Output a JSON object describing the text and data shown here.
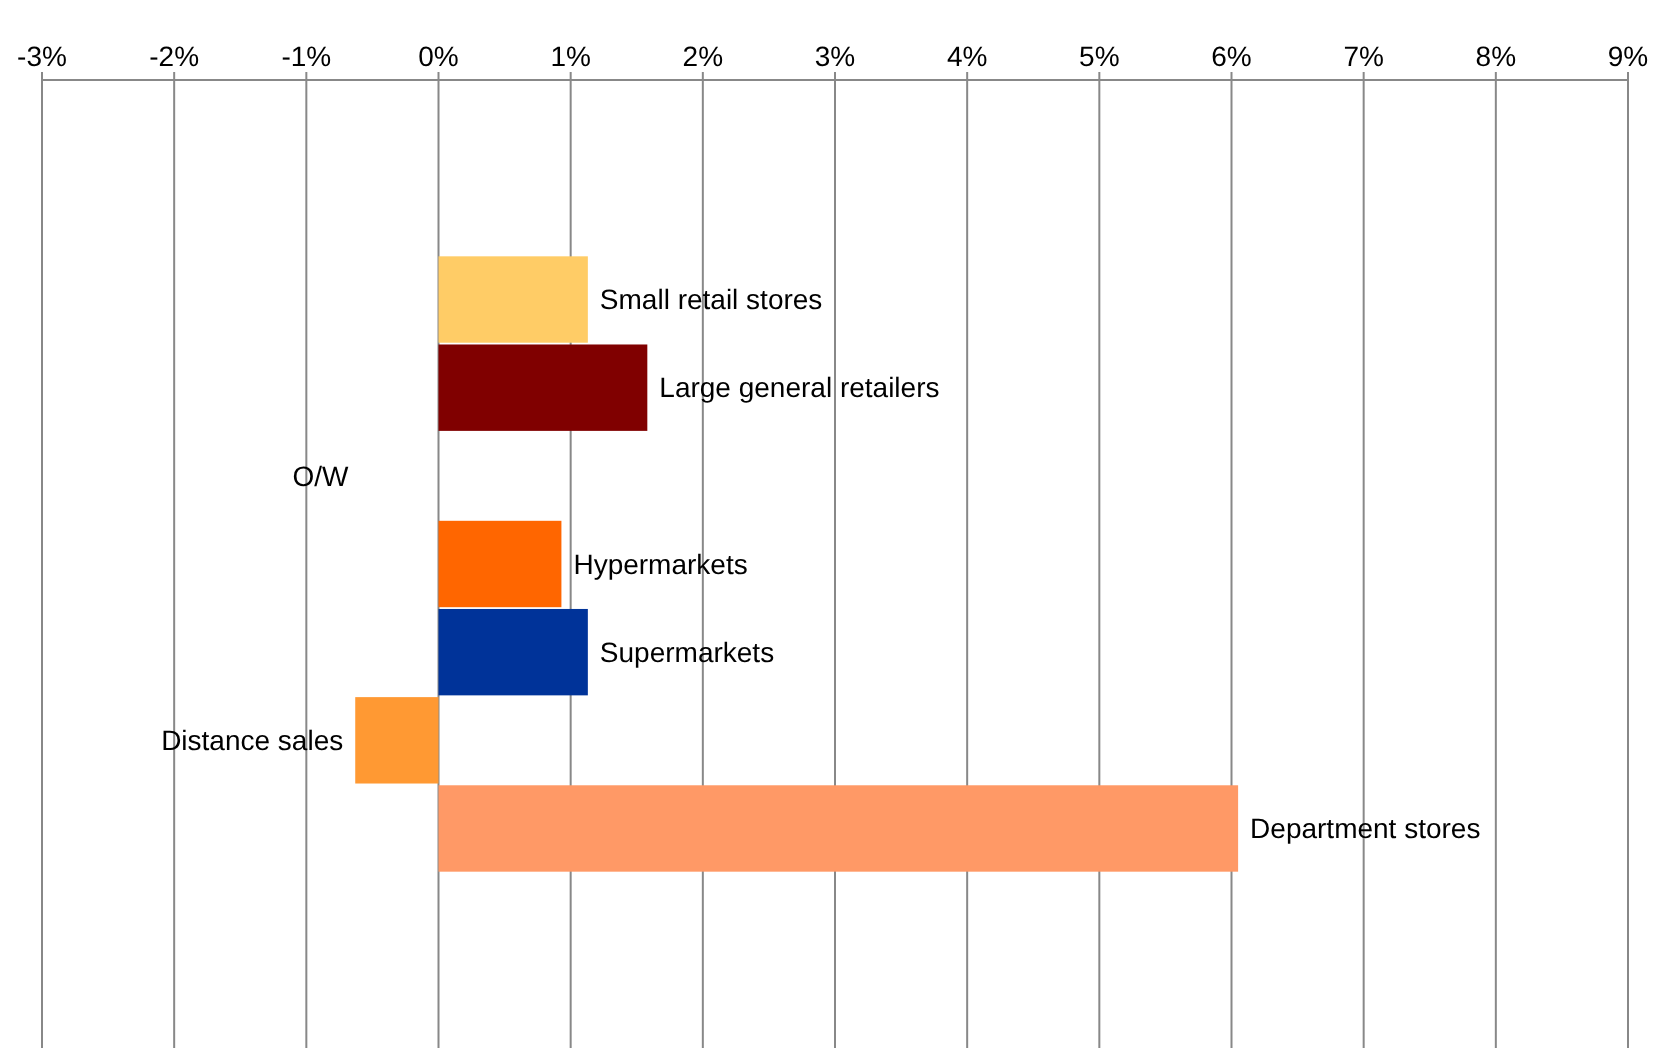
{
  "chart_data": {
    "type": "bar",
    "orientation": "horizontal",
    "categories": [
      null,
      null,
      "Small retail stores",
      "Large general retailers",
      "O/W",
      "Hypermarkets",
      "Supermarkets",
      "Distance sales",
      "Department stores",
      null,
      null
    ],
    "values": [
      null,
      null,
      1.13,
      1.58,
      null,
      0.93,
      1.13,
      -0.63,
      6.05,
      null,
      null
    ],
    "colors": [
      null,
      null,
      "#ffcc66",
      "#800000",
      null,
      "#ff6600",
      "#003399",
      "#ff9933",
      "#ff9966",
      null,
      null
    ],
    "xlim": [
      -3,
      9
    ],
    "xticks": [
      {
        "value": -3,
        "label": "-3%"
      },
      {
        "value": -2,
        "label": "-2%"
      },
      {
        "value": -1,
        "label": "-1%"
      },
      {
        "value": 0,
        "label": "0%"
      },
      {
        "value": 1,
        "label": "1%"
      },
      {
        "value": 2,
        "label": "2%"
      },
      {
        "value": 3,
        "label": "3%"
      },
      {
        "value": 4,
        "label": "4%"
      },
      {
        "value": 5,
        "label": "5%"
      },
      {
        "value": 6,
        "label": "6%"
      },
      {
        "value": 7,
        "label": "7%"
      },
      {
        "value": 8,
        "label": "8%"
      },
      {
        "value": 9,
        "label": "9%"
      }
    ],
    "grid": "x"
  }
}
